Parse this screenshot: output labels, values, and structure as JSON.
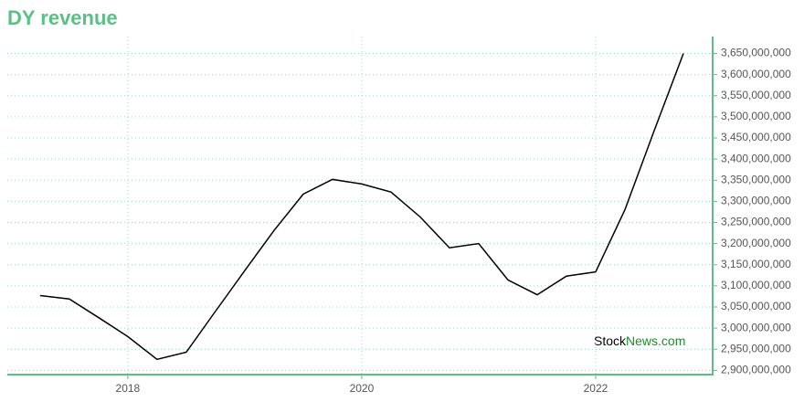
{
  "chart_data": {
    "type": "line",
    "title": "DY revenue",
    "x": [
      2017.25,
      2017.5,
      2017.75,
      2018.0,
      2018.25,
      2018.5,
      2018.75,
      2019.0,
      2019.25,
      2019.5,
      2019.75,
      2020.0,
      2020.25,
      2020.5,
      2020.75,
      2021.0,
      2021.25,
      2021.5,
      2021.75,
      2022.0,
      2022.25,
      2022.5,
      2022.75
    ],
    "series": [
      {
        "name": "revenue",
        "color": "#000000",
        "values": [
          3077000000,
          3069000000,
          3025000000,
          2980000000,
          2926000000,
          2943000000,
          3040000000,
          3136000000,
          3231000000,
          3317000000,
          3352000000,
          3341000000,
          3322000000,
          3263000000,
          3190000000,
          3200000000,
          3114000000,
          3079000000,
          3123000000,
          3133000000,
          3280000000,
          3467000000,
          3650000000
        ]
      }
    ],
    "xlim": [
      2016.97,
      2023.0
    ],
    "xticks": [
      2018,
      2020,
      2022
    ],
    "ylim": [
      2890000000,
      3690000000
    ],
    "yticks": [
      {
        "value": 2900000000,
        "label": "2,900,000,000"
      },
      {
        "value": 2950000000,
        "label": "2,950,000,000"
      },
      {
        "value": 3000000000,
        "label": "3,000,000,000"
      },
      {
        "value": 3050000000,
        "label": "3,050,000,000"
      },
      {
        "value": 3100000000,
        "label": "3,100,000,000"
      },
      {
        "value": 3150000000,
        "label": "3,150,000,000"
      },
      {
        "value": 3200000000,
        "label": "3,200,000,000"
      },
      {
        "value": 3250000000,
        "label": "3,250,000,000"
      },
      {
        "value": 3300000000,
        "label": "3,300,000,000"
      },
      {
        "value": 3350000000,
        "label": "3,350,000,000"
      },
      {
        "value": 3400000000,
        "label": "3,400,000,000"
      },
      {
        "value": 3450000000,
        "label": "3,450,000,000"
      },
      {
        "value": 3500000000,
        "label": "3,500,000,000"
      },
      {
        "value": 3550000000,
        "label": "3,550,000,000"
      },
      {
        "value": 3600000000,
        "label": "3,600,000,000"
      },
      {
        "value": 3650000000,
        "label": "3,650,000,000"
      }
    ],
    "grid": true,
    "axis_color": "#5cbf85",
    "watermark": [
      "Stock",
      "News.com"
    ]
  }
}
